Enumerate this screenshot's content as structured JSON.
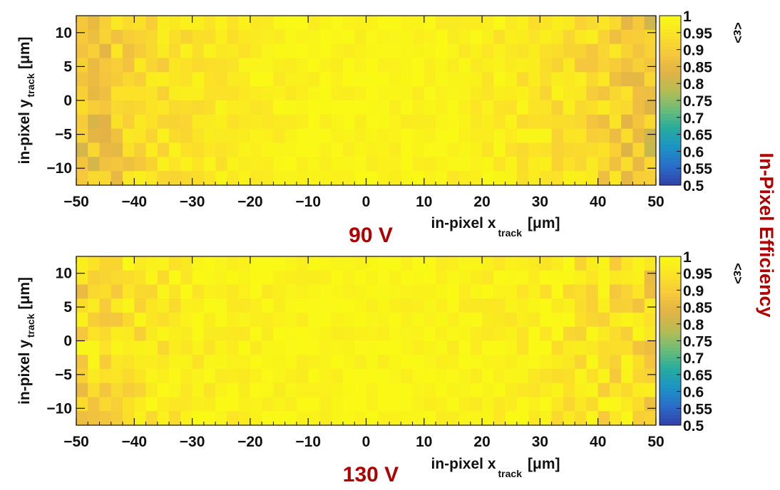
{
  "side_label": "In-Pixel Efficiency",
  "colors": {
    "condition_label": "#b00000",
    "palette": [
      "#3140a8",
      "#2a6cc9",
      "#1c93c6",
      "#27ab9e",
      "#6cbc78",
      "#b5bc54",
      "#e2b346",
      "#f6c83c",
      "#fbe227",
      "#f9f915"
    ]
  },
  "chart_data": [
    {
      "type": "heatmap",
      "condition": "90 V",
      "xlabel_main": "in-pixel x",
      "xlabel_sub": "track",
      "xlabel_unit": "[μm]",
      "ylabel_main": "in-pixel y",
      "ylabel_sub": "track",
      "ylabel_unit": "[μm]",
      "zlabel": "<ε>",
      "xlim": [
        -50,
        50
      ],
      "ylim": [
        -12.5,
        12.5
      ],
      "zlim": [
        0.5,
        1.0
      ],
      "x_ticks": [
        "−50",
        "−40",
        "−30",
        "−20",
        "−10",
        "0",
        "10",
        "20",
        "30",
        "40",
        "50"
      ],
      "y_ticks": [
        "10",
        "5",
        "0",
        "−5",
        "−10"
      ],
      "z_ticks": [
        "1",
        "0.95",
        "0.9",
        "0.85",
        "0.8",
        "0.75",
        "0.7",
        "0.65",
        "0.6",
        "0.55",
        "0.5"
      ],
      "bins_x": 50,
      "bins_y": 12,
      "profile_x": [
        -50,
        -40,
        -30,
        -20,
        -10,
        0,
        10,
        20,
        30,
        40,
        50
      ],
      "profile_eff": [
        0.86,
        0.92,
        0.955,
        0.975,
        0.985,
        0.99,
        0.985,
        0.975,
        0.955,
        0.92,
        0.86
      ]
    },
    {
      "type": "heatmap",
      "condition": "130 V",
      "xlabel_main": "in-pixel x",
      "xlabel_sub": "track",
      "xlabel_unit": "[μm]",
      "ylabel_main": "in-pixel y",
      "ylabel_sub": "track",
      "ylabel_unit": "[μm]",
      "zlabel": "<ε>",
      "xlim": [
        -50,
        50
      ],
      "ylim": [
        -12.5,
        12.5
      ],
      "zlim": [
        0.5,
        1.0
      ],
      "x_ticks": [
        "−50",
        "−40",
        "−30",
        "−20",
        "−10",
        "0",
        "10",
        "20",
        "30",
        "40",
        "50"
      ],
      "y_ticks": [
        "10",
        "5",
        "0",
        "−5",
        "−10"
      ],
      "z_ticks": [
        "1",
        "0.95",
        "0.9",
        "0.85",
        "0.8",
        "0.75",
        "0.7",
        "0.65",
        "0.6",
        "0.55",
        "0.5"
      ],
      "bins_x": 50,
      "bins_y": 12,
      "profile_x": [
        -50,
        -40,
        -30,
        -20,
        -10,
        0,
        10,
        20,
        30,
        40,
        50
      ],
      "profile_eff": [
        0.92,
        0.95,
        0.975,
        0.985,
        0.99,
        0.992,
        0.99,
        0.985,
        0.975,
        0.95,
        0.92
      ]
    }
  ]
}
